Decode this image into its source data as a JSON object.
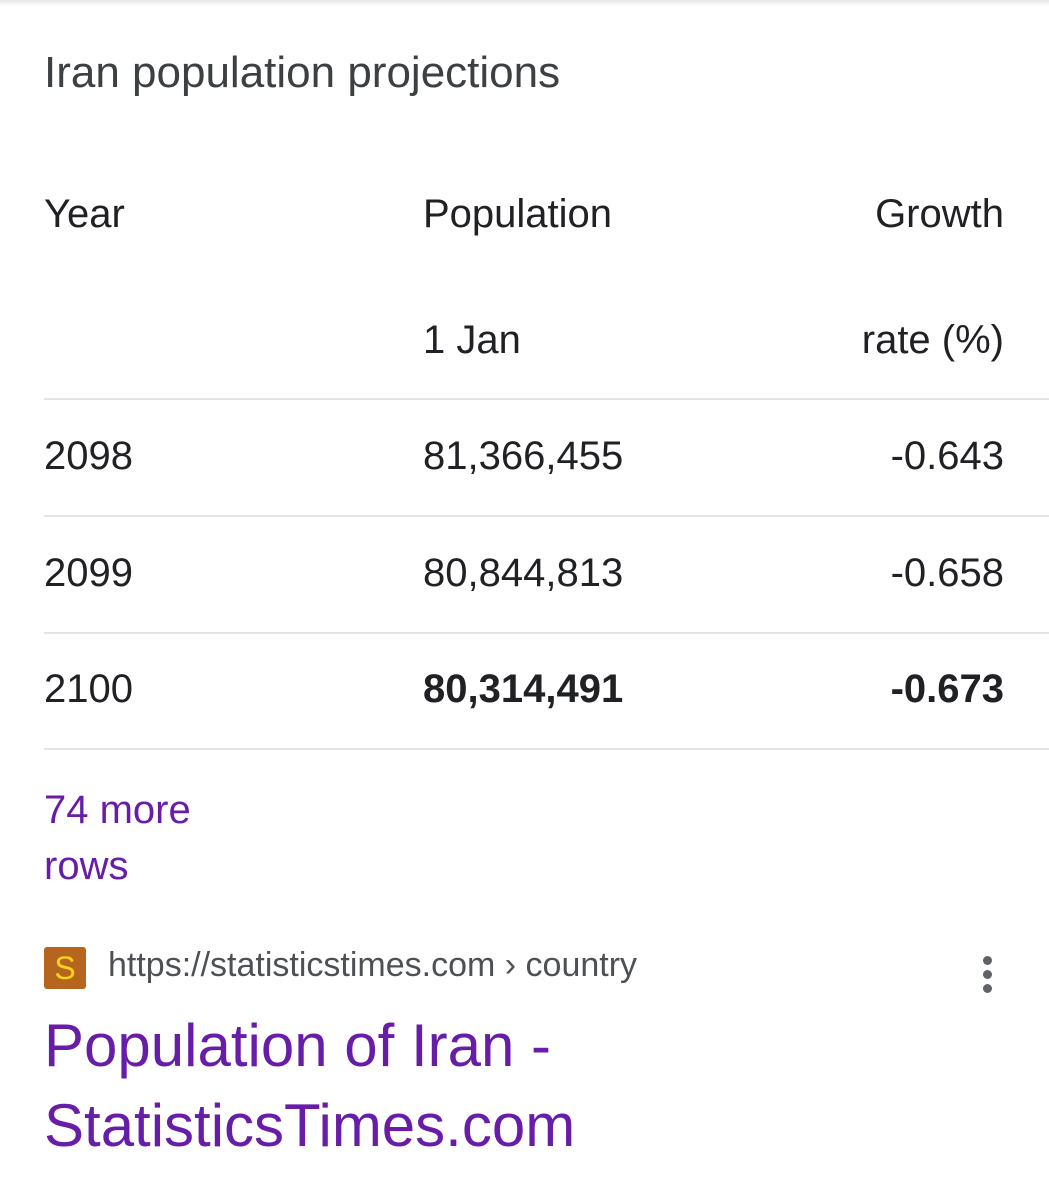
{
  "header": {
    "title": "Iran population projections"
  },
  "table": {
    "columns": [
      [
        "Year"
      ],
      [
        "Population",
        "1 Jan"
      ],
      [
        "Growth",
        "rate (%)"
      ]
    ],
    "rows": [
      [
        "2098",
        "81,366,455",
        "-0.643"
      ],
      [
        "2099",
        "80,844,813",
        "-0.658"
      ],
      [
        "2100",
        "80,314,491",
        "-0.673"
      ]
    ]
  },
  "more_rows": "74 more rows",
  "result": {
    "favicon": "S",
    "url": "https://statisticstimes.com › country",
    "title": "Population of Iran - StatisticsTimes.com"
  }
}
